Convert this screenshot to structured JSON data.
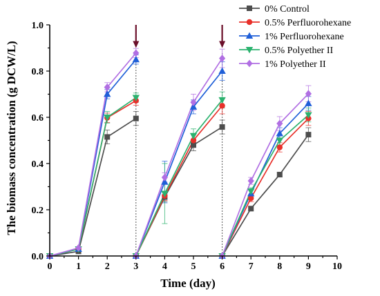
{
  "chart_data": {
    "type": "line",
    "xlabel": "Time (day)",
    "ylabel": "The biomass concentration (g DCW/L)",
    "xlim": [
      0,
      10
    ],
    "ylim": [
      0,
      1.0
    ],
    "xticks": [
      "0",
      "1",
      "2",
      "3",
      "4",
      "5",
      "6",
      "7",
      "8",
      "9",
      "10"
    ],
    "yticks": [
      "0.0",
      "0.2",
      "0.4",
      "0.6",
      "0.8",
      "1.0"
    ],
    "grid": false,
    "legend_position": "top-right",
    "arrows_at_x": [
      3,
      6
    ],
    "arrow_color": "#6b0f2a",
    "series": [
      {
        "name": "0% Control",
        "color": "#4d4d4d",
        "marker": "square",
        "segments": [
          [
            [
              0,
              0.0
            ],
            [
              1,
              0.02
            ],
            [
              2,
              0.515
            ],
            [
              3,
              0.595
            ]
          ],
          [
            [
              3,
              0.0
            ],
            [
              4,
              0.255
            ],
            [
              5,
              0.48
            ],
            [
              6,
              0.558
            ]
          ],
          [
            [
              6,
              0.0
            ],
            [
              7,
              0.205
            ],
            [
              8,
              0.352
            ],
            [
              9,
              0.525
            ]
          ]
        ],
        "errors": [
          [
            0,
            0.005,
            0.02
          ],
          [
            2,
            0.03
          ],
          [
            3,
            0.03
          ],
          [
            4,
            0.02
          ],
          [
            5,
            0.025
          ],
          [
            6,
            0.03
          ],
          [
            7,
            0.01
          ],
          [
            8,
            0.01
          ],
          [
            9,
            0.03
          ]
        ]
      },
      {
        "name": "0.5% Perfluorohexane",
        "color": "#e8302a",
        "marker": "circle",
        "segments": [
          [
            [
              0,
              0.0
            ],
            [
              1,
              0.03
            ],
            [
              2,
              0.598
            ],
            [
              3,
              0.672
            ]
          ],
          [
            [
              3,
              0.0
            ],
            [
              4,
              0.26
            ],
            [
              5,
              0.5
            ],
            [
              6,
              0.65
            ]
          ],
          [
            [
              6,
              0.0
            ],
            [
              7,
              0.25
            ],
            [
              8,
              0.47
            ],
            [
              9,
              0.595
            ]
          ]
        ],
        "errors": [
          [
            0,
            0.005,
            0.02
          ],
          [
            2,
            0.02
          ],
          [
            3,
            0.02
          ],
          [
            4,
            0.02
          ],
          [
            5,
            0.03
          ],
          [
            6,
            0.035
          ],
          [
            7,
            0.015
          ],
          [
            8,
            0.02
          ],
          [
            9,
            0.03
          ]
        ]
      },
      {
        "name": "1% Perfluorohexane",
        "color": "#1f5fd8",
        "marker": "triangle-up",
        "segments": [
          [
            [
              0,
              0.0
            ],
            [
              1,
              0.03
            ],
            [
              2,
              0.7
            ],
            [
              3,
              0.85
            ]
          ],
          [
            [
              3,
              0.0
            ],
            [
              4,
              0.32
            ],
            [
              5,
              0.645
            ],
            [
              6,
              0.8
            ]
          ],
          [
            [
              6,
              0.0
            ],
            [
              7,
              0.27
            ],
            [
              8,
              0.53
            ],
            [
              9,
              0.66
            ]
          ]
        ],
        "errors": [
          [
            0,
            0.005,
            0.02
          ],
          [
            2,
            0.02
          ],
          [
            3,
            0.02
          ],
          [
            4,
            0.09
          ],
          [
            5,
            0.03
          ],
          [
            6,
            0.04
          ],
          [
            7,
            0.015
          ],
          [
            8,
            0.025
          ],
          [
            9,
            0.03
          ]
        ]
      },
      {
        "name": "0.5% Polyether II",
        "color": "#2bb26e",
        "marker": "triangle-down",
        "segments": [
          [
            [
              0,
              0.0
            ],
            [
              1,
              0.03
            ],
            [
              2,
              0.6
            ],
            [
              3,
              0.685
            ]
          ],
          [
            [
              3,
              0.0
            ],
            [
              4,
              0.27
            ],
            [
              5,
              0.52
            ],
            [
              6,
              0.675
            ]
          ],
          [
            [
              6,
              0.0
            ],
            [
              7,
              0.28
            ],
            [
              8,
              0.5
            ],
            [
              9,
              0.61
            ]
          ]
        ],
        "errors": [
          [
            0,
            0.005,
            0.02
          ],
          [
            2,
            0.025
          ],
          [
            3,
            0.02
          ],
          [
            4,
            0.13
          ],
          [
            5,
            0.03
          ],
          [
            6,
            0.035
          ],
          [
            7,
            0.015
          ],
          [
            8,
            0.02
          ],
          [
            9,
            0.03
          ]
        ]
      },
      {
        "name": "1% Polyether II",
        "color": "#b16fe3",
        "marker": "diamond",
        "segments": [
          [
            [
              0,
              0.0
            ],
            [
              1,
              0.035
            ],
            [
              2,
              0.73
            ],
            [
              3,
              0.878
            ]
          ],
          [
            [
              3,
              0.0
            ],
            [
              4,
              0.34
            ],
            [
              5,
              0.665
            ],
            [
              6,
              0.855
            ]
          ],
          [
            [
              6,
              0.0
            ],
            [
              7,
              0.325
            ],
            [
              8,
              0.573
            ],
            [
              9,
              0.702
            ]
          ]
        ],
        "errors": [
          [
            0,
            0.005,
            0.02
          ],
          [
            2,
            0.02
          ],
          [
            3,
            0.02
          ],
          [
            4,
            0.02
          ],
          [
            5,
            0.035
          ],
          [
            6,
            0.04
          ],
          [
            7,
            0.015
          ],
          [
            8,
            0.03
          ],
          [
            9,
            0.035
          ]
        ]
      }
    ]
  }
}
